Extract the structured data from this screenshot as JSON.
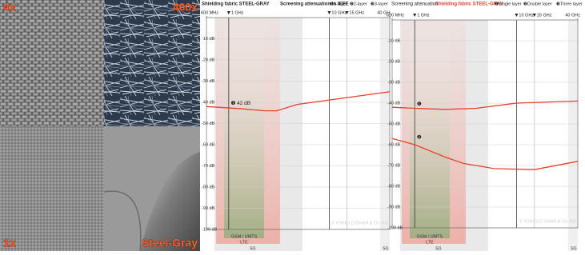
{
  "photos": {
    "labels": [
      "4x",
      "400x",
      "1x",
      "Steel-Gray"
    ]
  },
  "chart_data": [
    {
      "type": "line",
      "title": "Shielding fabric STEEL-GRAY",
      "subtitle": "Screening attenuation to IEEE",
      "legend": [
        "❶1-layer",
        "❷2-layer",
        "❸3-layer"
      ],
      "xscale": "log",
      "xlim": [
        0.6,
        40
      ],
      "xticks": [
        {
          "value": 0.6,
          "label": "600 MHz"
        },
        {
          "value": 1,
          "label": "1 GHz"
        },
        {
          "value": 10,
          "label": "10 GHz"
        },
        {
          "value": 15,
          "label": "15 GHz"
        },
        {
          "value": 40,
          "label": "40 GHz"
        }
      ],
      "ylim": [
        -100,
        0
      ],
      "yticks": [
        {
          "value": -10,
          "label": "-10 dB"
        },
        {
          "value": -20,
          "label": "-20 dB"
        },
        {
          "value": -30,
          "label": "-30 dB"
        },
        {
          "value": -40,
          "label": "-40 dB"
        },
        {
          "value": -50,
          "label": "-50 dB"
        },
        {
          "value": -60,
          "label": "-60 dB"
        },
        {
          "value": -70,
          "label": "-70 dB"
        },
        {
          "value": -80,
          "label": "-80 dB"
        },
        {
          "value": -90,
          "label": "-90 dB"
        },
        {
          "value": -100,
          "label": "-100 dB"
        }
      ],
      "grid": true,
      "series": [
        {
          "color": "#e8412c",
          "x": [
            0.6,
            1.3,
            2.3,
            3,
            4.8,
            40
          ],
          "values": [
            -42,
            -43,
            -44,
            -44,
            -41,
            -35
          ]
        }
      ],
      "annotations": [
        {
          "text": "❶ 42 dB",
          "x": 1.05,
          "y": -42
        }
      ],
      "band_labels": [
        "GSM / UMTS",
        "LTE",
        "5G",
        "5G"
      ],
      "watermark": "© YSHIELD GmbH & Co. KG"
    },
    {
      "type": "line",
      "title": "Shielding fabric STEEL-GRAY",
      "subtitle": "Screening attenuation",
      "legend": [
        "❶Single layer",
        "❷Double layer",
        "❸Three layer"
      ],
      "xscale": "log",
      "xlim": [
        0.6,
        40
      ],
      "xticks": [
        {
          "value": 0.6,
          "label": "600 MHz"
        },
        {
          "value": 1,
          "label": "1 GHz"
        },
        {
          "value": 10,
          "label": "10 GHz"
        },
        {
          "value": 15,
          "label": "15 GHz"
        },
        {
          "value": 40,
          "label": "40 GHz"
        }
      ],
      "ylim": [
        -100,
        0
      ],
      "yticks": [
        {
          "value": -10,
          "label": "-10 dB"
        },
        {
          "value": -20,
          "label": "-20 dB"
        },
        {
          "value": -30,
          "label": "-30 dB"
        },
        {
          "value": -40,
          "label": "-40 dB"
        },
        {
          "value": -50,
          "label": "-50 dB"
        },
        {
          "value": -60,
          "label": "-60 dB"
        },
        {
          "value": -70,
          "label": "-70 dB"
        },
        {
          "value": -80,
          "label": "-80 dB"
        },
        {
          "value": -90,
          "label": "-90 dB"
        },
        {
          "value": -100,
          "label": "-100 dB"
        }
      ],
      "grid": true,
      "series": [
        {
          "color": "#e8412c",
          "x": [
            0.6,
            1,
            2,
            4,
            10,
            40
          ],
          "values": [
            -42,
            -42.5,
            -43,
            -42.5,
            -40,
            -39
          ]
        },
        {
          "color": "#e8412c",
          "x": [
            0.6,
            1,
            2,
            3,
            6,
            15,
            40
          ],
          "values": [
            -57,
            -60,
            -66,
            -69,
            -71.5,
            -72,
            -68
          ]
        }
      ],
      "annotations": [
        {
          "text": "❶",
          "x": 1.05,
          "y": -42
        },
        {
          "text": "❷",
          "x": 1.05,
          "y": -58
        }
      ],
      "band_labels": [
        "GSM / UMTS",
        "LTE",
        "5G",
        "5G"
      ],
      "watermark": "© YSHIELD GmbH & Co. KG"
    }
  ]
}
